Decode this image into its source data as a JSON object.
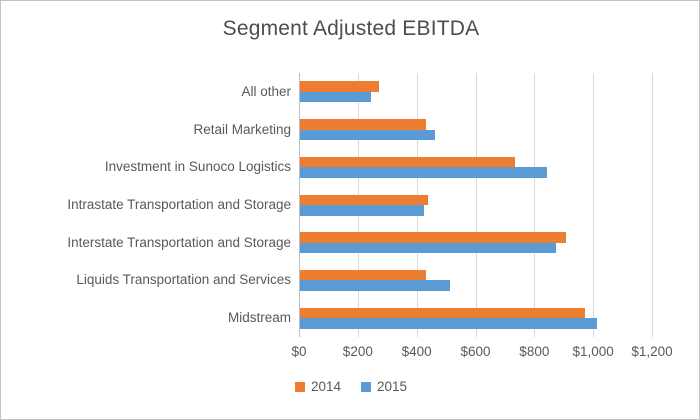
{
  "chart_data": {
    "type": "bar",
    "orientation": "horizontal",
    "title": "Segment Adjusted EBITDA",
    "categories": [
      "All other",
      "Retail Marketing",
      "Investment in Sunoco Logistics",
      "Intrastate Transportation and Storage",
      "Interstate Transportation and Storage",
      "Liquids Transportation and Services",
      "Midstream"
    ],
    "series": [
      {
        "name": "2014",
        "color": "#ED7D31",
        "values": [
          270,
          430,
          730,
          435,
          905,
          430,
          970
        ]
      },
      {
        "name": "2015",
        "color": "#5B9BD5",
        "values": [
          240,
          460,
          840,
          420,
          870,
          510,
          1010
        ]
      }
    ],
    "xlim": [
      0,
      1200
    ],
    "x_tick_interval": 200,
    "x_tick_labels": [
      "$0",
      "$200",
      "$400",
      "$600",
      "$800",
      "$1,000",
      "$1,200"
    ],
    "grid": true,
    "legend_position": "bottom-center"
  },
  "colors": {
    "gridline": "#d9d9d9",
    "axis": "#bfbfbf",
    "text": "#595959",
    "series_2014": "#ED7D31",
    "series_2015": "#5B9BD5"
  }
}
